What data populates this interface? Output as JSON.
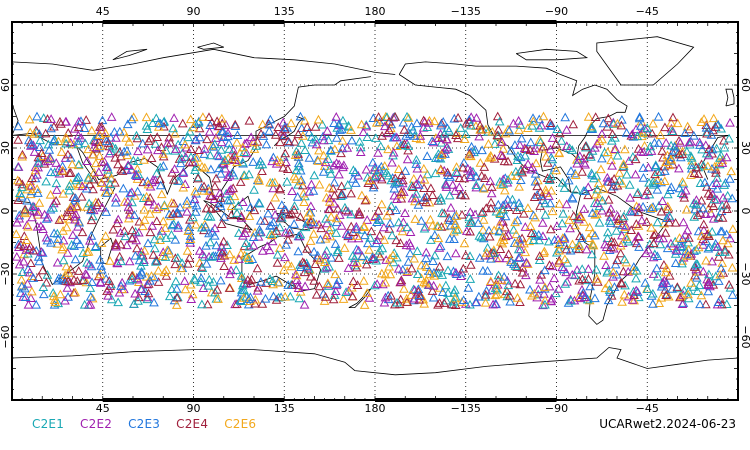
{
  "map": {
    "projection": "cylindrical equidistant, centered 180°",
    "lon_range": [
      0,
      360
    ],
    "lat_range": [
      -90,
      90
    ],
    "top_tick_labels": [
      "45",
      "90",
      "135",
      "180",
      "−135",
      "−90",
      "−45"
    ],
    "bottom_tick_labels": [
      "45",
      "90",
      "135",
      "180",
      "−135",
      "−90",
      "−45"
    ],
    "left_lat_labels": [
      "60",
      "30",
      "0",
      "−30",
      "−60"
    ],
    "right_lat_labels": [
      "60",
      "30",
      "0",
      "−30",
      "−60"
    ],
    "grid": "dotted",
    "marker_shape": "open-triangle",
    "observation_lat_range": [
      -45,
      45
    ]
  },
  "legend": {
    "series": [
      {
        "name": "C2E1",
        "color": "#19a8b4"
      },
      {
        "name": "C2E2",
        "color": "#a020b0"
      },
      {
        "name": "C2E3",
        "color": "#2277dd"
      },
      {
        "name": "C2E4",
        "color": "#a0203c"
      },
      {
        "name": "C2E6",
        "color": "#f2a81c"
      }
    ]
  },
  "dataset_label": "UCARwet2.2024-06-23"
}
